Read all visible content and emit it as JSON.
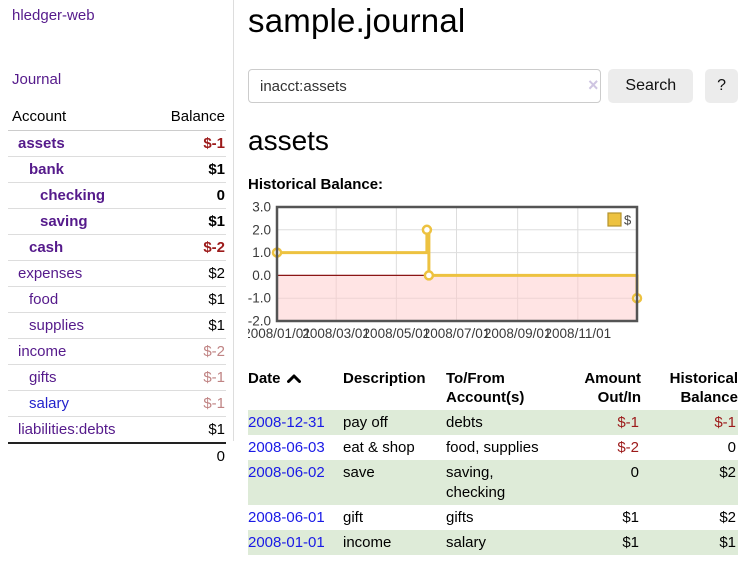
{
  "colors": {
    "link_purple": "#551a8b",
    "link_blue": "#2323cc",
    "date_link_blue": "#1a1ae6",
    "negative_dark_red": "#9c1a1a",
    "negative_light_red": "#c08484",
    "row_stripe_green": "#deebd8",
    "series_yellow": "#edc240",
    "negative_region_pink": "#ffc9c9",
    "zero_line_red": "#8b1515",
    "chart_border_gray": "#545454",
    "button_gray": "#ececec"
  },
  "icons": {
    "sort_asc": "chevron-up-icon",
    "search_clear": "×"
  },
  "app_title": "hledger-web",
  "sidebar": {
    "journal_link": "Journal",
    "account_header": "Account",
    "balance_header": "Balance",
    "accounts": [
      {
        "name": "assets",
        "balance": "$-1"
      },
      {
        "name": "bank",
        "balance": "$1"
      },
      {
        "name": "checking",
        "balance": "0"
      },
      {
        "name": "saving",
        "balance": "$1"
      },
      {
        "name": "cash",
        "balance": "$-2"
      },
      {
        "name": "expenses",
        "balance": "$2"
      },
      {
        "name": "food",
        "balance": "$1"
      },
      {
        "name": "supplies",
        "balance": "$1"
      },
      {
        "name": "income",
        "balance": "$-2"
      },
      {
        "name": "gifts",
        "balance": "$-1"
      },
      {
        "name": "salary",
        "balance": "$-1"
      },
      {
        "name": "liabilities:debts",
        "balance": "$1"
      }
    ],
    "total": "0"
  },
  "main": {
    "title": "sample.journal",
    "search": {
      "value": "inacct:assets",
      "clear_icon": "×",
      "button": "Search",
      "help_button": "?"
    },
    "account_heading": "assets",
    "chart_title": "Historical Balance:"
  },
  "chart_data": {
    "type": "line",
    "title": "Historical Balance:",
    "step": true,
    "series": [
      {
        "name": "$",
        "color": "#edc240",
        "points": [
          [
            "2008-01-01",
            1
          ],
          [
            "2008-06-01",
            2
          ],
          [
            "2008-06-03",
            0
          ],
          [
            "2008-12-31",
            -1
          ]
        ]
      }
    ],
    "x_range": [
      "2008-01-01",
      "2008-12-31"
    ],
    "x_ticks": [
      "2008/01/01",
      "2008/03/01",
      "2008/05/01",
      "2008/07/01",
      "2008/09/01",
      "2008/11/01"
    ],
    "y_ticks": [
      "3.0",
      "2.0",
      "1.0",
      "0.0",
      "-1.0",
      "-2.0"
    ],
    "ylim": [
      -2,
      3
    ],
    "grid": true,
    "legend_position": "top-right",
    "negative_region": true
  },
  "register": {
    "headers": {
      "date": "Date",
      "description": "Description",
      "accounts": "To/From Account(s)",
      "amount": "Amount Out/In",
      "balance": "Historical Balance"
    },
    "rows": [
      {
        "date": "2008-12-31",
        "description": "pay off",
        "accounts": "debts",
        "amount": "$-1",
        "balance": "$-1"
      },
      {
        "date": "2008-06-03",
        "description": "eat & shop",
        "accounts": "food, supplies",
        "amount": "$-2",
        "balance": "0"
      },
      {
        "date": "2008-06-02",
        "description": "save",
        "accounts": "saving, checking",
        "amount": "0",
        "balance": "$2"
      },
      {
        "date": "2008-06-01",
        "description": "gift",
        "accounts": "gifts",
        "amount": "$1",
        "balance": "$2"
      },
      {
        "date": "2008-01-01",
        "description": "income",
        "accounts": "salary",
        "amount": "$1",
        "balance": "$1"
      }
    ]
  }
}
